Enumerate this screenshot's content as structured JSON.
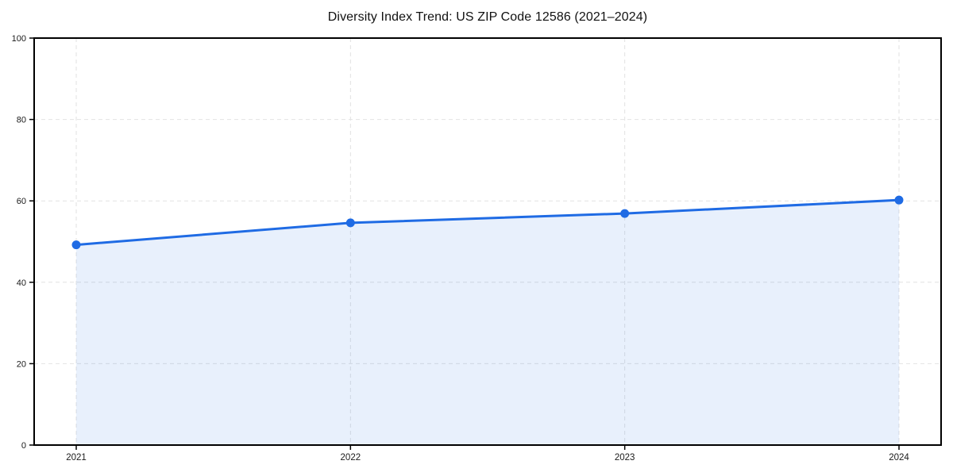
{
  "window": {
    "background": "#ffffff"
  },
  "chart_data": {
    "type": "area",
    "title": "Diversity Index Trend: US ZIP Code 12586 (2021–2024)",
    "categories": [
      "2021",
      "2022",
      "2023",
      "2024"
    ],
    "series": [
      {
        "name": "Diversity Index",
        "values": [
          49.2,
          54.6,
          56.9,
          60.2
        ]
      }
    ],
    "xlabel": "",
    "ylabel": "",
    "ylim": [
      0,
      100
    ],
    "yticks": [
      0,
      20,
      40,
      60,
      80,
      100
    ],
    "grid": true,
    "grid_style": "dashed",
    "legend_position": "none",
    "line_color": "#1f6be4",
    "marker_color": "#1f6be4",
    "fill_color": "#1f6be4",
    "fill_opacity": 0.1,
    "grid_color": "#e2e2e2",
    "axis_color": "#000000",
    "tick_label_color": "#1a1a1a",
    "title_color": "#111111"
  }
}
